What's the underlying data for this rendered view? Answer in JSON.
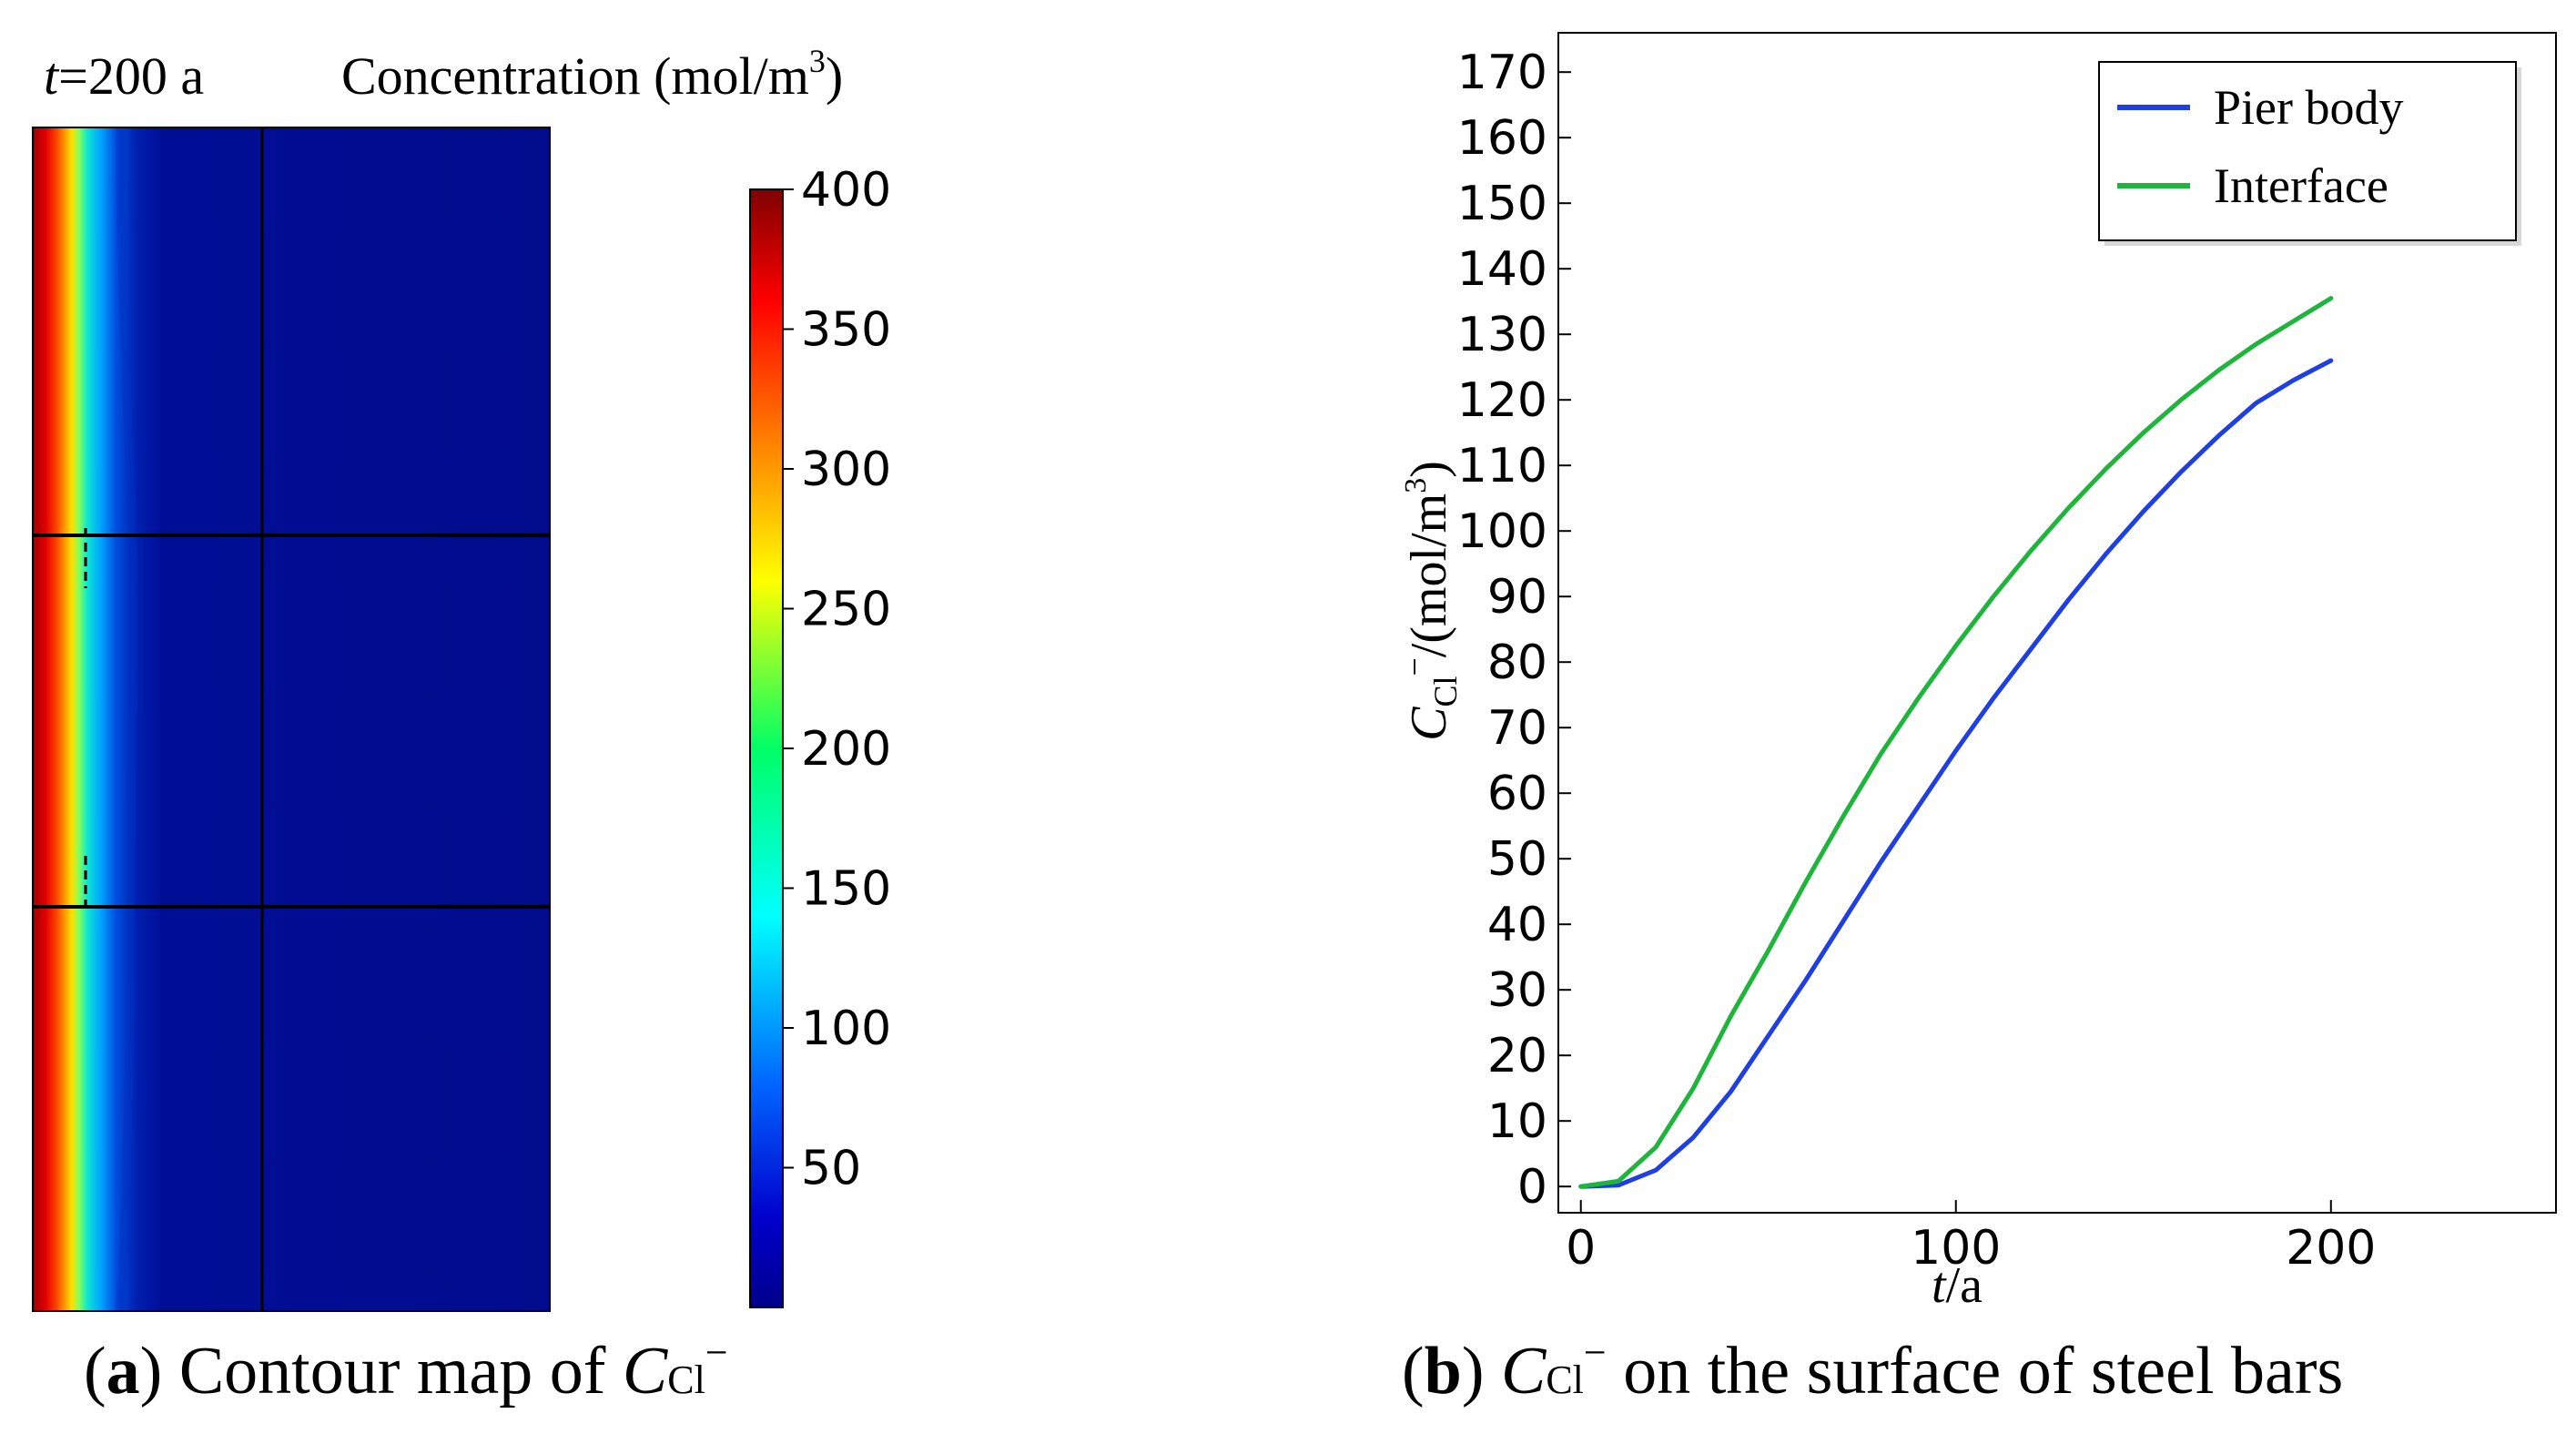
{
  "panel_a": {
    "time_label": "t=200 a",
    "time_symbol": "t",
    "time_value": "=200 a",
    "colorbar_title": "Concentration (mol/m",
    "colorbar_title_sup": "3",
    "colorbar_title_end": ")",
    "colorbar_ticks": [
      "400",
      "350",
      "300",
      "250",
      "200",
      "150",
      "100",
      "50"
    ],
    "colorbar_range": [
      0,
      400
    ],
    "caption_letter": "a",
    "caption_open": "(",
    "caption_close": ")",
    "caption_text": " Contour map of ",
    "caption_symbol": "C",
    "caption_sub": "Cl",
    "caption_sup": "−"
  },
  "panel_b": {
    "caption_letter": "b",
    "caption_open": "(",
    "caption_close": ")",
    "caption_symbol": "C",
    "caption_sub": "Cl",
    "caption_sup": "−",
    "caption_text": " on the surface of steel bars"
  },
  "chart_data": {
    "type": "line",
    "title": "",
    "xlabel": "t/a",
    "xlabel_italic": "t",
    "xlabel_rest": "/a",
    "ylabel": "C_Cl−/(mol/m3)",
    "ylabel_symbol": "C",
    "ylabel_sub": "Cl",
    "ylabel_sup": "−",
    "ylabel_rest": "/(mol/m",
    "ylabel_sup3": "3",
    "ylabel_end": ")",
    "xlim": [
      -6,
      260
    ],
    "ylim": [
      -4,
      176
    ],
    "xticks": [
      0,
      100,
      200
    ],
    "yticks": [
      0,
      10,
      20,
      30,
      40,
      50,
      60,
      70,
      80,
      90,
      100,
      110,
      120,
      130,
      140,
      150,
      160,
      170
    ],
    "grid": false,
    "legend_position": "top-right",
    "x": [
      0,
      10,
      20,
      30,
      40,
      50,
      60,
      70,
      80,
      90,
      100,
      110,
      120,
      130,
      140,
      150,
      160,
      170,
      180,
      190,
      200
    ],
    "series": [
      {
        "name": "Pier body",
        "color": "#1f3fe0",
        "values": [
          0,
          0.2,
          2.5,
          7.5,
          14.5,
          23,
          31.5,
          40.5,
          49.5,
          58,
          66.5,
          74.5,
          82,
          89.5,
          96.5,
          103,
          109,
          114.5,
          119.5,
          123,
          126
        ]
      },
      {
        "name": "Interface",
        "color": "#1fb43c",
        "values": [
          0,
          0.8,
          6,
          15,
          26,
          36,
          46.5,
          56.5,
          66,
          74.5,
          82.5,
          90,
          97,
          103.5,
          109.5,
          115,
          120,
          124.5,
          128.5,
          132,
          135.5
        ]
      }
    ]
  }
}
